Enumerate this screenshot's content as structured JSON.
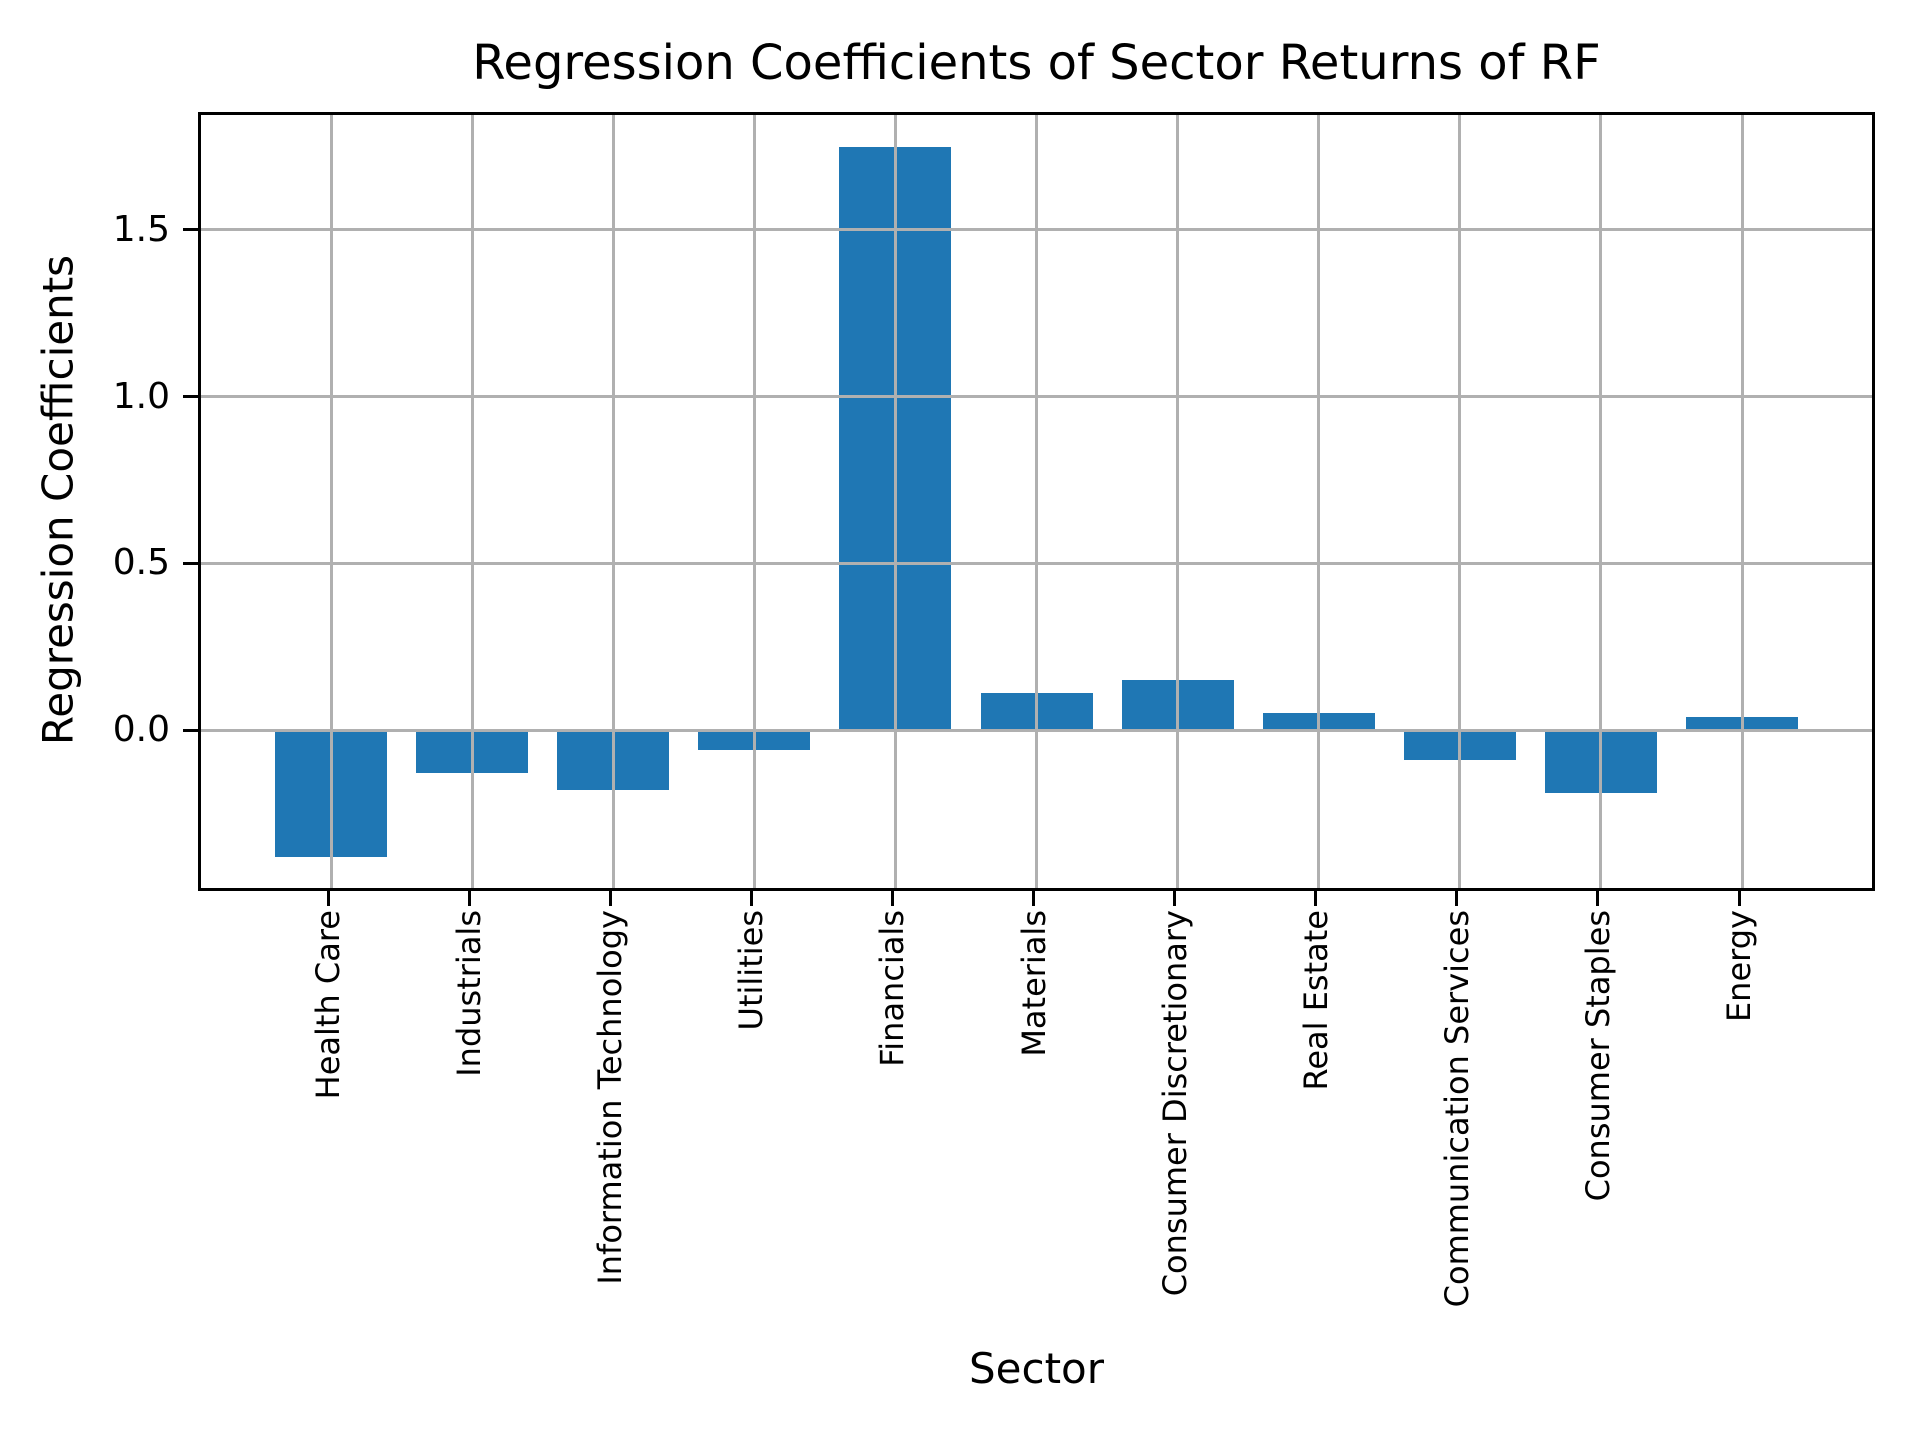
{
  "figure": {
    "background": "#ffffff"
  },
  "chart_data": {
    "type": "bar",
    "title": "Regression Coefficients of Sector Returns of RF",
    "xlabel": "Sector",
    "ylabel": "Regression Coefficients",
    "categories": [
      "Health Care",
      "Industrials",
      "Information Technology",
      "Utilities",
      "Financials",
      "Materials",
      "Consumer Discretionary",
      "Real Estate",
      "Communication Services",
      "Consumer Staples",
      "Energy"
    ],
    "values": [
      -0.38,
      -0.13,
      -0.18,
      -0.06,
      1.75,
      0.11,
      0.15,
      0.05,
      -0.09,
      -0.19,
      0.04
    ],
    "yticks": [
      0.0,
      0.5,
      1.0,
      1.5
    ],
    "ytick_labels": [
      "0.0",
      "0.5",
      "1.0",
      "1.5"
    ],
    "ylim": [
      -0.48,
      1.85
    ],
    "bar_color": "#1f77b4",
    "grid": true,
    "grid_color": "#b0b0b0",
    "axis_color": "#000000",
    "legend_position": "none"
  }
}
